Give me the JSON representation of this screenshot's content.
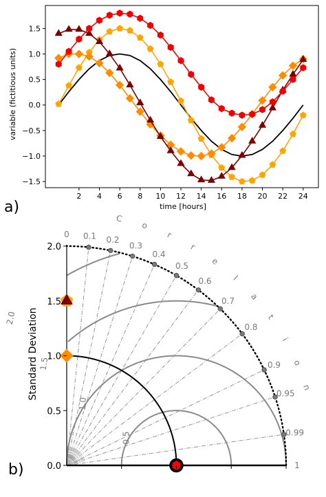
{
  "panel_a": {
    "panel_label": "a)",
    "xlabel": "time [hours]",
    "ylabel": "variable (fictitious units)"
  },
  "panel_b": {
    "panel_label": "b)",
    "ylabel": "Standard Deviation",
    "correlation_title": "Correlation"
  },
  "chart_data": [
    {
      "type": "line",
      "title": "",
      "xlabel": "time [hours]",
      "ylabel": "variable (fictitious units)",
      "xlim": [
        -1.3,
        25.5
      ],
      "ylim": [
        -1.62,
        1.95
      ],
      "xticks": [
        2,
        4,
        6,
        8,
        10,
        12,
        14,
        16,
        18,
        20,
        22,
        24
      ],
      "yticks": [
        -1.5,
        -1.0,
        -0.5,
        0.0,
        0.5,
        1.0,
        1.5
      ],
      "ytick_labels": [
        "−1.5",
        "−1.0",
        "−0.5",
        "0.0",
        "0.5",
        "1.0",
        "1.5"
      ],
      "grid": false,
      "series": [
        {
          "color": "#000000",
          "marker": "none",
          "x": [
            0,
            1,
            2,
            3,
            4,
            5,
            6,
            7,
            8,
            9,
            10,
            11,
            12,
            13,
            14,
            15,
            16,
            17,
            18,
            19,
            20,
            21,
            22,
            23,
            24
          ],
          "values": [
            0.0,
            0.26,
            0.5,
            0.71,
            0.87,
            0.97,
            1.0,
            0.97,
            0.87,
            0.71,
            0.5,
            0.26,
            0.0,
            -0.26,
            -0.5,
            -0.71,
            -0.87,
            -0.97,
            -1.0,
            -0.97,
            -0.87,
            -0.71,
            -0.5,
            -0.26,
            0.0
          ]
        },
        {
          "color": "#ffa500",
          "marker": "pentagon",
          "x": [
            0,
            1,
            2,
            3,
            4,
            5,
            6,
            7,
            8,
            9,
            10,
            11,
            12,
            13,
            14,
            15,
            16,
            17,
            18,
            19,
            20,
            21,
            22,
            23,
            24
          ],
          "values": [
            0.02,
            0.38,
            0.73,
            1.03,
            1.28,
            1.44,
            1.5,
            1.46,
            1.32,
            1.1,
            0.8,
            0.45,
            0.08,
            -0.3,
            -0.66,
            -0.98,
            -1.23,
            -1.41,
            -1.5,
            -1.48,
            -1.37,
            -1.17,
            -0.9,
            -0.57,
            -0.2
          ]
        },
        {
          "color": "#ff8c00",
          "marker": "diamond",
          "x": [
            0,
            1,
            2,
            3,
            4,
            5,
            6,
            7,
            8,
            9,
            10,
            11,
            12,
            13,
            14,
            15,
            16,
            17,
            18,
            19,
            20,
            21,
            22,
            23,
            24
          ],
          "values": [
            0.92,
            1.0,
            1.0,
            0.95,
            0.82,
            0.63,
            0.39,
            0.13,
            -0.13,
            -0.38,
            -0.6,
            -0.78,
            -0.91,
            -0.99,
            -1.0,
            -0.95,
            -0.83,
            -0.65,
            -0.43,
            -0.18,
            0.09,
            0.35,
            0.58,
            0.77,
            0.9
          ]
        },
        {
          "color": "#7b0000",
          "marker": "triangle",
          "x": [
            0,
            1,
            2,
            3,
            4,
            5,
            6,
            7,
            8,
            9,
            10,
            11,
            12,
            13,
            14,
            15,
            16,
            17,
            18,
            19,
            20,
            21,
            22,
            23,
            24
          ],
          "values": [
            1.4,
            1.48,
            1.48,
            1.4,
            1.24,
            1.0,
            0.72,
            0.39,
            0.04,
            -0.3,
            -0.62,
            -0.9,
            -1.15,
            -1.35,
            -1.47,
            -1.48,
            -1.4,
            -1.23,
            -0.99,
            -0.71,
            -0.4,
            -0.06,
            0.29,
            0.6,
            0.89
          ]
        },
        {
          "color": "#f00000",
          "marker": "hexagon",
          "x": [
            0,
            1,
            2,
            3,
            4,
            5,
            6,
            7,
            8,
            9,
            10,
            11,
            12,
            13,
            14,
            15,
            16,
            17,
            18,
            19,
            20,
            21,
            22,
            23,
            24
          ],
          "values": [
            0.8,
            1.05,
            1.29,
            1.5,
            1.66,
            1.76,
            1.8,
            1.78,
            1.7,
            1.56,
            1.37,
            1.13,
            0.87,
            0.6,
            0.35,
            0.1,
            -0.07,
            -0.16,
            -0.2,
            -0.18,
            -0.09,
            0.06,
            0.27,
            0.5,
            0.73
          ]
        }
      ]
    },
    {
      "type": "taylor_diagram",
      "ylabel": "Standard Deviation",
      "sd_max": 2.0,
      "sd_ticks": [
        0.0,
        0.5,
        1.0,
        1.5,
        2.0
      ],
      "sd_tick_labels": [
        "0.0",
        "0.5",
        "1.0",
        "1.5",
        "2.0"
      ],
      "correlation_ticks": [
        0,
        0.1,
        0.2,
        0.3,
        0.4,
        0.5,
        0.6,
        0.7,
        0.8,
        0.9,
        0.95,
        0.99,
        1
      ],
      "correlation_tick_labels": [
        "0",
        "0.1",
        "0.2",
        "0.3",
        "0.4",
        "0.5",
        "0.6",
        "0.7",
        "0.8",
        "0.9",
        "0.95",
        "0.99",
        "1"
      ],
      "rms_contours": [
        0.5,
        1.0,
        1.5,
        2.0
      ],
      "rms_labels": [
        "0.5",
        "1.0",
        "1.5",
        "2.0"
      ],
      "reference_sd": 1.0,
      "points": [
        {
          "marker": "pentagon",
          "color": "#ffa500",
          "sd": 1.5,
          "correlation": 0.0
        },
        {
          "marker": "diamond",
          "color": "#ff8c00",
          "sd": 1.0,
          "correlation": 0.0
        },
        {
          "marker": "triangle",
          "color": "#8b0000",
          "sd": 1.5,
          "correlation": 0.0
        },
        {
          "marker": "hexagon",
          "color": "#ff0000",
          "sd": 1.0,
          "correlation": 1.0
        },
        {
          "marker": "circle",
          "color": "#000000",
          "sd": 1.0,
          "correlation": 1.0
        }
      ]
    }
  ]
}
